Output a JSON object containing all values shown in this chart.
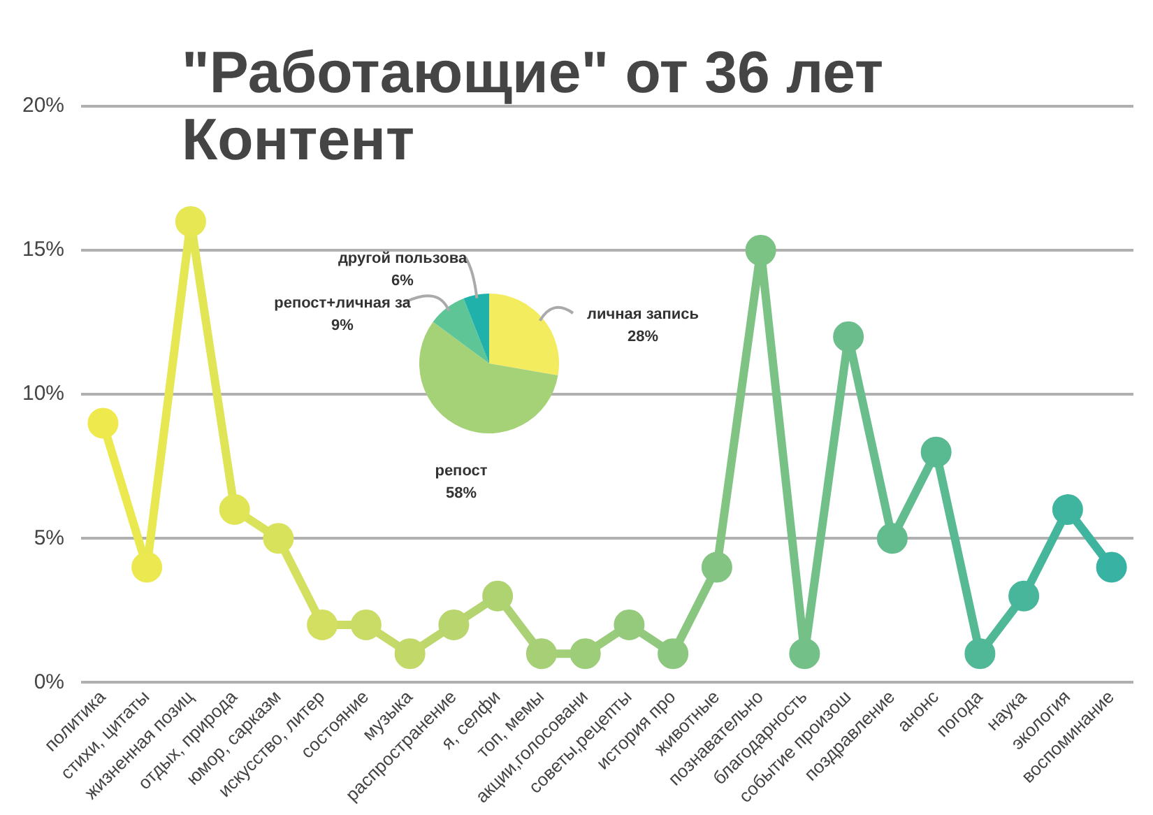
{
  "chart_data": [
    {
      "type": "line",
      "title": "\"Работающие\" от 36 лет\nКонтент",
      "categories": [
        "политика",
        "стихи, цитаты",
        "жизненная позиц",
        "отдых, природа",
        "юмор, сарказм",
        "искусство, литер",
        "состояние",
        "музыка",
        "распространение",
        "я, селфи",
        "топ, мемы",
        "акции,голосовани",
        "советы,рецепты",
        "история про",
        "животные",
        "познавательно",
        "благодарность",
        "событие произош",
        "поздравление",
        "анонс",
        "погода",
        "наука",
        "экология",
        "воспоминание"
      ],
      "values": [
        9,
        4,
        16,
        6,
        5,
        2,
        2,
        1,
        2,
        3,
        1,
        1,
        2,
        1,
        4,
        15,
        1,
        12,
        5,
        8,
        1,
        3,
        6,
        4
      ],
      "colors": [
        "#eeea4e",
        "#ebe94f",
        "#e6e752",
        "#e0e556",
        "#d9e25b",
        "#d2df60",
        "#cadc65",
        "#c2d96a",
        "#b9d66e",
        "#b0d372",
        "#a7d076",
        "#9ecd79",
        "#95ca7c",
        "#8cc77f",
        "#83c482",
        "#7bc285",
        "#73c088",
        "#6bbe8b",
        "#62bc8e",
        "#59ba92",
        "#50b896",
        "#47b69a",
        "#3fb49e",
        "#38b2a2"
      ],
      "marker": "circle",
      "ylim": [
        0,
        20
      ],
      "yticks": [
        {
          "value": 0,
          "label": "0%"
        },
        {
          "value": 5,
          "label": "5%"
        },
        {
          "value": 10,
          "label": "10%"
        },
        {
          "value": 15,
          "label": "15%"
        },
        {
          "value": 20,
          "label": "20%"
        }
      ],
      "grid": "y",
      "legend": false
    },
    {
      "type": "pie",
      "categories": [
        "личная запись",
        "репост",
        "репост+личная за",
        "другой пользова"
      ],
      "values": [
        28,
        58,
        9,
        6
      ],
      "colors": [
        "#f3ec5f",
        "#a5d276",
        "#5ec597",
        "#20b2aa"
      ],
      "value_labels": [
        "28%",
        "58%",
        "9%",
        "6%"
      ]
    }
  ]
}
